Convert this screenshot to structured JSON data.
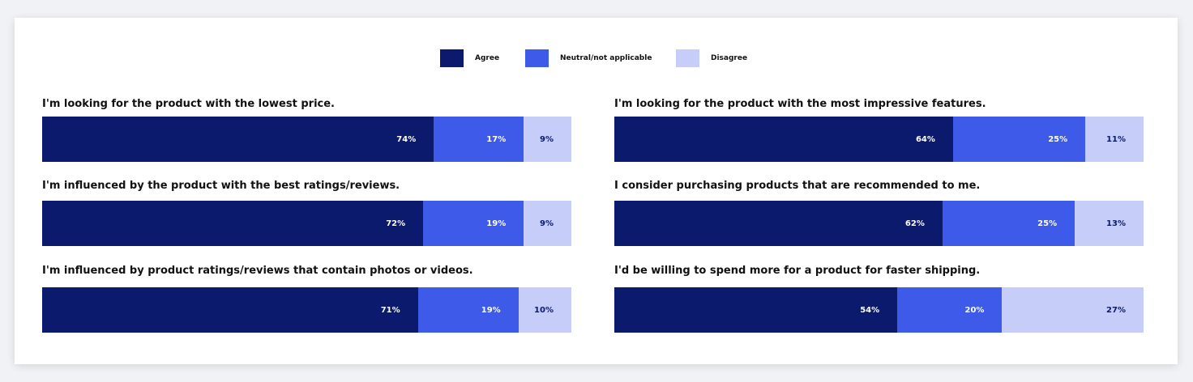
{
  "legend": [
    {
      "label": "Agree",
      "color": "#0c1a6e"
    },
    {
      "label": "Neutral/not applicable",
      "color": "#3d5ae8"
    },
    {
      "label": "Disagree",
      "color": "#c5cdf8"
    }
  ],
  "chart_data": {
    "type": "bar",
    "orientation": "horizontal-stacked-percent",
    "legend_position": "top-center",
    "series_names": [
      "Agree",
      "Neutral/not applicable",
      "Disagree"
    ],
    "colors": [
      "#0c1a6e",
      "#3d5ae8",
      "#c5cdf8"
    ],
    "questions": [
      {
        "text": "I'm looking for the product with the lowest price.",
        "values": [
          74,
          17,
          9
        ]
      },
      {
        "text": "I'm looking for the product with the most impressive features.",
        "values": [
          64,
          25,
          11
        ]
      },
      {
        "text": "I'm influenced by the product with the best ratings/reviews.",
        "values": [
          72,
          19,
          9
        ]
      },
      {
        "text": "I consider purchasing products that are recommended to me.",
        "values": [
          62,
          25,
          13
        ]
      },
      {
        "text": "I'm influenced by product ratings/reviews that contain photos or videos.",
        "values": [
          71,
          19,
          10
        ]
      },
      {
        "text": "I'd be willing to spend more for a product for faster shipping.",
        "values": [
          54,
          20,
          27
        ]
      }
    ]
  }
}
